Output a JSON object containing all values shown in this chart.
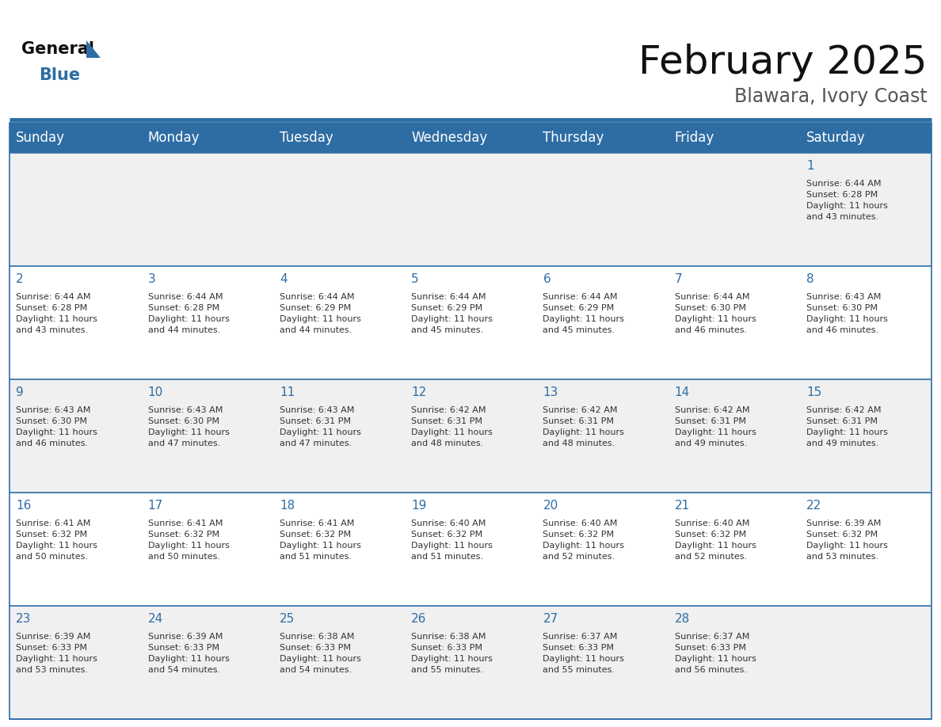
{
  "title": "February 2025",
  "subtitle": "Blawara, Ivory Coast",
  "header_bg_color": "#2E6DA4",
  "header_text_color": "#FFFFFF",
  "cell_bg_colors": [
    "#F0F0F0",
    "#FFFFFF",
    "#F0F0F0",
    "#FFFFFF",
    "#F0F0F0"
  ],
  "day_number_color": "#2E6DA4",
  "text_color": "#333333",
  "border_color": "#2E6DA4",
  "days_of_week": [
    "Sunday",
    "Monday",
    "Tuesday",
    "Wednesday",
    "Thursday",
    "Friday",
    "Saturday"
  ],
  "weeks": [
    [
      {
        "day": null,
        "info": null
      },
      {
        "day": null,
        "info": null
      },
      {
        "day": null,
        "info": null
      },
      {
        "day": null,
        "info": null
      },
      {
        "day": null,
        "info": null
      },
      {
        "day": null,
        "info": null
      },
      {
        "day": 1,
        "info": "Sunrise: 6:44 AM\nSunset: 6:28 PM\nDaylight: 11 hours\nand 43 minutes."
      }
    ],
    [
      {
        "day": 2,
        "info": "Sunrise: 6:44 AM\nSunset: 6:28 PM\nDaylight: 11 hours\nand 43 minutes."
      },
      {
        "day": 3,
        "info": "Sunrise: 6:44 AM\nSunset: 6:28 PM\nDaylight: 11 hours\nand 44 minutes."
      },
      {
        "day": 4,
        "info": "Sunrise: 6:44 AM\nSunset: 6:29 PM\nDaylight: 11 hours\nand 44 minutes."
      },
      {
        "day": 5,
        "info": "Sunrise: 6:44 AM\nSunset: 6:29 PM\nDaylight: 11 hours\nand 45 minutes."
      },
      {
        "day": 6,
        "info": "Sunrise: 6:44 AM\nSunset: 6:29 PM\nDaylight: 11 hours\nand 45 minutes."
      },
      {
        "day": 7,
        "info": "Sunrise: 6:44 AM\nSunset: 6:30 PM\nDaylight: 11 hours\nand 46 minutes."
      },
      {
        "day": 8,
        "info": "Sunrise: 6:43 AM\nSunset: 6:30 PM\nDaylight: 11 hours\nand 46 minutes."
      }
    ],
    [
      {
        "day": 9,
        "info": "Sunrise: 6:43 AM\nSunset: 6:30 PM\nDaylight: 11 hours\nand 46 minutes."
      },
      {
        "day": 10,
        "info": "Sunrise: 6:43 AM\nSunset: 6:30 PM\nDaylight: 11 hours\nand 47 minutes."
      },
      {
        "day": 11,
        "info": "Sunrise: 6:43 AM\nSunset: 6:31 PM\nDaylight: 11 hours\nand 47 minutes."
      },
      {
        "day": 12,
        "info": "Sunrise: 6:42 AM\nSunset: 6:31 PM\nDaylight: 11 hours\nand 48 minutes."
      },
      {
        "day": 13,
        "info": "Sunrise: 6:42 AM\nSunset: 6:31 PM\nDaylight: 11 hours\nand 48 minutes."
      },
      {
        "day": 14,
        "info": "Sunrise: 6:42 AM\nSunset: 6:31 PM\nDaylight: 11 hours\nand 49 minutes."
      },
      {
        "day": 15,
        "info": "Sunrise: 6:42 AM\nSunset: 6:31 PM\nDaylight: 11 hours\nand 49 minutes."
      }
    ],
    [
      {
        "day": 16,
        "info": "Sunrise: 6:41 AM\nSunset: 6:32 PM\nDaylight: 11 hours\nand 50 minutes."
      },
      {
        "day": 17,
        "info": "Sunrise: 6:41 AM\nSunset: 6:32 PM\nDaylight: 11 hours\nand 50 minutes."
      },
      {
        "day": 18,
        "info": "Sunrise: 6:41 AM\nSunset: 6:32 PM\nDaylight: 11 hours\nand 51 minutes."
      },
      {
        "day": 19,
        "info": "Sunrise: 6:40 AM\nSunset: 6:32 PM\nDaylight: 11 hours\nand 51 minutes."
      },
      {
        "day": 20,
        "info": "Sunrise: 6:40 AM\nSunset: 6:32 PM\nDaylight: 11 hours\nand 52 minutes."
      },
      {
        "day": 21,
        "info": "Sunrise: 6:40 AM\nSunset: 6:32 PM\nDaylight: 11 hours\nand 52 minutes."
      },
      {
        "day": 22,
        "info": "Sunrise: 6:39 AM\nSunset: 6:32 PM\nDaylight: 11 hours\nand 53 minutes."
      }
    ],
    [
      {
        "day": 23,
        "info": "Sunrise: 6:39 AM\nSunset: 6:33 PM\nDaylight: 11 hours\nand 53 minutes."
      },
      {
        "day": 24,
        "info": "Sunrise: 6:39 AM\nSunset: 6:33 PM\nDaylight: 11 hours\nand 54 minutes."
      },
      {
        "day": 25,
        "info": "Sunrise: 6:38 AM\nSunset: 6:33 PM\nDaylight: 11 hours\nand 54 minutes."
      },
      {
        "day": 26,
        "info": "Sunrise: 6:38 AM\nSunset: 6:33 PM\nDaylight: 11 hours\nand 55 minutes."
      },
      {
        "day": 27,
        "info": "Sunrise: 6:37 AM\nSunset: 6:33 PM\nDaylight: 11 hours\nand 55 minutes."
      },
      {
        "day": 28,
        "info": "Sunrise: 6:37 AM\nSunset: 6:33 PM\nDaylight: 11 hours\nand 56 minutes."
      },
      {
        "day": null,
        "info": null
      }
    ]
  ],
  "title_fontsize": 36,
  "subtitle_fontsize": 17,
  "header_fontsize": 12,
  "day_number_fontsize": 11,
  "cell_text_fontsize": 8.0,
  "fig_bg_color": "#FFFFFF",
  "logo_general_color": "#111111",
  "logo_blue_color": "#2E6DA4",
  "logo_triangle_color": "#2E6DA4"
}
